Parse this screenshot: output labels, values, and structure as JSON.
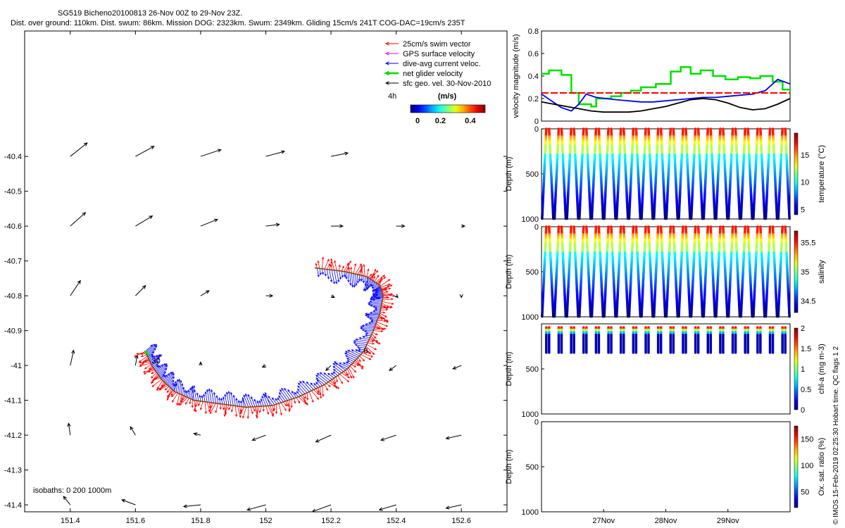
{
  "header": {
    "title_line1": "SG519 Bicheno20100813 26-Nov 00Z to 29-Nov 23Z.",
    "title_line2": "Dist. over ground: 110km. Dist. swum: 86km. Mission DOG: 2323km. Swum: 2349km. Gliding 15cm/s 241T COG-DAC=19cm/s 235T"
  },
  "footer_credit": "© IMOS 15-Feb-2019 02:25:30 Hobart time. QC flags 1  2",
  "colors": {
    "swim": "#ff0000",
    "gps": "#ff00ff",
    "dac": "#0000ff",
    "net": "#00e000",
    "geo": "#000000",
    "red_line": "#ff0000"
  },
  "chart_data": [
    {
      "type": "scatter",
      "id": "map",
      "title": "",
      "xlabel": "",
      "ylabel": "",
      "xlim": [
        151.26,
        152.74
      ],
      "ylim": [
        -41.42,
        -40.04
      ],
      "xticks": [
        151.4,
        151.6,
        151.8,
        152,
        152.2,
        152.4,
        152.6
      ],
      "xtick_labels": [
        "151.4",
        "151.6",
        "151.8",
        "152",
        "152.2",
        "152.4",
        "152.6"
      ],
      "yticks": [
        -40.4,
        -40.5,
        -40.6,
        -40.7,
        -40.8,
        -40.9,
        -41,
        -41.1,
        -41.2,
        -41.3,
        -41.4
      ],
      "ytick_labels": [
        "-40.4",
        "-40.5",
        "-40.6",
        "-40.7",
        "-40.8",
        "-40.9",
        "-41",
        "-41.1",
        "-41.2",
        "-41.3",
        "-41.4"
      ],
      "legend": {
        "placement": "top-right",
        "entries": [
          {
            "label": "25cm/s swim vector",
            "color": "#ff0000"
          },
          {
            "label": "GPS surface velocity",
            "color": "#ff00ff"
          },
          {
            "label": "dive-avg current veloc.",
            "color": "#0000ff"
          },
          {
            "label": "net glider velocity",
            "color": "#00e000"
          },
          {
            "label": "sfc geo. vel. 30-Nov-2010",
            "color": "#000000"
          }
        ]
      },
      "colorbar": {
        "label": "(m/s)",
        "ticks": [
          "0",
          "0.2",
          "0.4"
        ],
        "range": [
          0,
          0.5
        ],
        "side_label": "4h"
      },
      "isobath_label": "isobaths: 0   200   1000m",
      "annotations": [
        {
          "text": "30",
          "x": 151.65,
          "y": -40.995
        },
        {
          "text": "8",
          "x": 152.3,
          "y": -40.965
        }
      ],
      "track": [
        [
          151.63,
          -40.96
        ],
        [
          151.65,
          -41.0
        ],
        [
          151.68,
          -41.04
        ],
        [
          151.72,
          -41.075
        ],
        [
          151.78,
          -41.1
        ],
        [
          151.86,
          -41.11
        ],
        [
          151.94,
          -41.12
        ],
        [
          152.02,
          -41.115
        ],
        [
          152.1,
          -41.09
        ],
        [
          152.18,
          -41.055
        ],
        [
          152.25,
          -41.01
        ],
        [
          152.3,
          -40.96
        ],
        [
          152.33,
          -40.9
        ],
        [
          152.35,
          -40.85
        ],
        [
          152.36,
          -40.8
        ],
        [
          152.35,
          -40.77
        ],
        [
          152.31,
          -40.745
        ],
        [
          152.24,
          -40.73
        ],
        [
          152.15,
          -40.72
        ]
      ],
      "geo_vectors": [
        {
          "lon": 151.4,
          "lat": -40.4,
          "u": 0.5,
          "v": 0.4
        },
        {
          "lon": 151.6,
          "lat": -40.4,
          "u": 0.55,
          "v": 0.3
        },
        {
          "lon": 151.8,
          "lat": -40.4,
          "u": 0.6,
          "v": 0.2
        },
        {
          "lon": 152.0,
          "lat": -40.4,
          "u": 0.55,
          "v": 0.15
        },
        {
          "lon": 152.2,
          "lat": -40.4,
          "u": 0.5,
          "v": 0.1
        },
        {
          "lon": 151.4,
          "lat": -40.6,
          "u": 0.45,
          "v": 0.4
        },
        {
          "lon": 151.6,
          "lat": -40.6,
          "u": 0.5,
          "v": 0.3
        },
        {
          "lon": 151.8,
          "lat": -40.6,
          "u": 0.5,
          "v": 0.2
        },
        {
          "lon": 152.0,
          "lat": -40.6,
          "u": 0.4,
          "v": 0.05
        },
        {
          "lon": 152.2,
          "lat": -40.6,
          "u": 0.35,
          "v": 0.0
        },
        {
          "lon": 152.4,
          "lat": -40.6,
          "u": 0.25,
          "v": 0.0
        },
        {
          "lon": 152.6,
          "lat": -40.6,
          "u": 0.1,
          "v": 0.0
        },
        {
          "lon": 151.4,
          "lat": -40.8,
          "u": 0.3,
          "v": 0.45
        },
        {
          "lon": 151.6,
          "lat": -40.8,
          "u": 0.3,
          "v": 0.3
        },
        {
          "lon": 151.8,
          "lat": -40.8,
          "u": 0.25,
          "v": 0.15
        },
        {
          "lon": 152.0,
          "lat": -40.8,
          "u": 0.2,
          "v": 0.0
        },
        {
          "lon": 152.2,
          "lat": -40.8,
          "u": 0.1,
          "v": -0.05
        },
        {
          "lon": 152.4,
          "lat": -40.8,
          "u": 0.05,
          "v": -0.05
        },
        {
          "lon": 152.6,
          "lat": -40.8,
          "u": 0.0,
          "v": -0.05
        },
        {
          "lon": 151.4,
          "lat": -41.0,
          "u": 0.1,
          "v": 0.45
        },
        {
          "lon": 151.6,
          "lat": -41.0,
          "u": 0.05,
          "v": 0.3
        },
        {
          "lon": 151.8,
          "lat": -41.0,
          "u": 0.0,
          "v": 0.1
        },
        {
          "lon": 152.0,
          "lat": -41.0,
          "u": -0.1,
          "v": -0.05
        },
        {
          "lon": 152.2,
          "lat": -41.0,
          "u": -0.15,
          "v": -0.15
        },
        {
          "lon": 152.4,
          "lat": -41.0,
          "u": -0.2,
          "v": -0.15
        },
        {
          "lon": 152.6,
          "lat": -41.0,
          "u": -0.25,
          "v": -0.1
        },
        {
          "lon": 151.4,
          "lat": -41.2,
          "u": -0.05,
          "v": 0.35
        },
        {
          "lon": 151.6,
          "lat": -41.2,
          "u": -0.15,
          "v": 0.25
        },
        {
          "lon": 151.8,
          "lat": -41.2,
          "u": -0.2,
          "v": 0.05
        },
        {
          "lon": 152.0,
          "lat": -41.2,
          "u": -0.4,
          "v": -0.15
        },
        {
          "lon": 152.2,
          "lat": -41.2,
          "u": -0.45,
          "v": -0.2
        },
        {
          "lon": 152.4,
          "lat": -41.2,
          "u": -0.45,
          "v": -0.15
        },
        {
          "lon": 152.6,
          "lat": -41.2,
          "u": -0.45,
          "v": -0.1
        },
        {
          "lon": 151.4,
          "lat": -41.4,
          "u": -0.2,
          "v": 0.25
        },
        {
          "lon": 151.6,
          "lat": -41.4,
          "u": -0.4,
          "v": 0.15
        },
        {
          "lon": 151.8,
          "lat": -41.4,
          "u": -0.5,
          "v": -0.05
        },
        {
          "lon": 152.0,
          "lat": -41.4,
          "u": -0.55,
          "v": -0.15
        },
        {
          "lon": 152.2,
          "lat": -41.4,
          "u": -0.55,
          "v": -0.2
        },
        {
          "lon": 152.4,
          "lat": -41.4,
          "u": -0.5,
          "v": -0.15
        },
        {
          "lon": 152.6,
          "lat": -41.4,
          "u": -0.45,
          "v": -0.1
        }
      ]
    },
    {
      "type": "line",
      "id": "velocity",
      "ylabel": "velocity magnitude (m/s)",
      "xlim": [
        0,
        1
      ],
      "ylim": [
        0,
        0.8
      ],
      "yticks": [
        0,
        0.2,
        0.4,
        0.6,
        0.8
      ],
      "ytick_labels": [
        "0",
        "0.2",
        "0.4",
        "0.6",
        "0.8"
      ],
      "red_line_value": 0.25,
      "series": [
        {
          "color": "#00e000",
          "step": true,
          "x": [
            0,
            0.03,
            0.08,
            0.12,
            0.15,
            0.2,
            0.22,
            0.28,
            0.32,
            0.36,
            0.4,
            0.46,
            0.52,
            0.56,
            0.6,
            0.64,
            0.69,
            0.74,
            0.79,
            0.84,
            0.88,
            0.93,
            0.97,
            1.0
          ],
          "values": [
            0.42,
            0.45,
            0.41,
            0.25,
            0.15,
            0.13,
            0.2,
            0.22,
            0.25,
            0.27,
            0.3,
            0.33,
            0.44,
            0.48,
            0.42,
            0.45,
            0.4,
            0.37,
            0.39,
            0.38,
            0.4,
            0.35,
            0.28,
            0.27
          ]
        },
        {
          "color": "#0000ff",
          "step": false,
          "x": [
            0,
            0.04,
            0.08,
            0.12,
            0.15,
            0.18,
            0.22,
            0.26,
            0.3,
            0.35,
            0.4,
            0.45,
            0.5,
            0.55,
            0.6,
            0.65,
            0.7,
            0.75,
            0.8,
            0.85,
            0.9,
            0.95,
            1.0
          ],
          "values": [
            0.24,
            0.18,
            0.12,
            0.09,
            0.15,
            0.24,
            0.21,
            0.2,
            0.19,
            0.18,
            0.17,
            0.17,
            0.18,
            0.19,
            0.2,
            0.21,
            0.21,
            0.22,
            0.23,
            0.24,
            0.27,
            0.37,
            0.33
          ]
        },
        {
          "color": "#000000",
          "step": false,
          "x": [
            0,
            0.05,
            0.1,
            0.15,
            0.2,
            0.25,
            0.3,
            0.35,
            0.4,
            0.45,
            0.5,
            0.55,
            0.6,
            0.65,
            0.7,
            0.75,
            0.8,
            0.85,
            0.9,
            0.95,
            1.0
          ],
          "values": [
            0.17,
            0.15,
            0.13,
            0.11,
            0.09,
            0.08,
            0.08,
            0.08,
            0.09,
            0.11,
            0.13,
            0.16,
            0.19,
            0.2,
            0.19,
            0.16,
            0.12,
            0.1,
            0.11,
            0.15,
            0.2
          ]
        }
      ]
    },
    {
      "type": "scatter",
      "id": "temperature",
      "ylabel": "Depth (m)",
      "colorbar_label": "temperature (°C)",
      "ylim": [
        1000,
        0
      ],
      "yticks": [
        0,
        500,
        1000
      ],
      "ytick_labels": [
        "0",
        "500",
        "1000"
      ],
      "colorbar_ticks": [
        "5",
        "10",
        "15"
      ],
      "colorbar_range": [
        4,
        19
      ],
      "profiles": 20,
      "max_depth": 1000
    },
    {
      "type": "scatter",
      "id": "salinity",
      "ylabel": "Depth (m)",
      "colorbar_label": "salinity",
      "ylim": [
        1000,
        0
      ],
      "yticks": [
        0,
        500,
        1000
      ],
      "ytick_labels": [
        "0",
        "500",
        "1000"
      ],
      "colorbar_ticks": [
        "34.5",
        "35",
        "35.5"
      ],
      "colorbar_range": [
        34.3,
        35.7
      ],
      "profiles": 20,
      "max_depth": 1000
    },
    {
      "type": "scatter",
      "id": "chla",
      "ylabel": "Depth (m)",
      "colorbar_label": "chl-a (mg m-3)",
      "ylim": [
        1000,
        0
      ],
      "yticks": [
        500,
        1000
      ],
      "ytick_labels": [
        "500",
        "1000"
      ],
      "colorbar_ticks": [
        "0",
        "0.5",
        "1",
        "1.5",
        "2"
      ],
      "colorbar_range": [
        0,
        2
      ],
      "profiles": 20,
      "max_depth": 290
    },
    {
      "type": "scatter",
      "id": "oxygen",
      "ylabel": "Depth (m)",
      "colorbar_label": "Ox. sat. ratio (%)",
      "ylim": [
        1000,
        0
      ],
      "yticks": [
        0,
        500,
        1000
      ],
      "ytick_labels": [
        "0",
        "500",
        "1000"
      ],
      "colorbar_ticks": [
        "50",
        "100",
        "150"
      ],
      "colorbar_range": [
        20,
        175
      ],
      "xtick_labels": [
        "27Nov",
        "28Nov",
        "29Nov"
      ],
      "xticks": [
        0.25,
        0.5,
        0.75
      ]
    }
  ]
}
